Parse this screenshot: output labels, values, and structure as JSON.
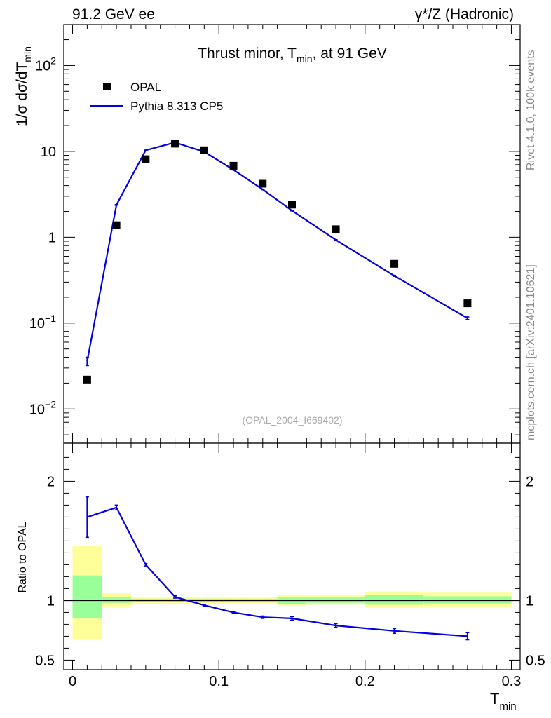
{
  "header": {
    "left": "91.2 GeV ee",
    "right_main": "γ*/Z (Hadronic)"
  },
  "side": {
    "rivet": "Rivet 4.1.0,  100k events",
    "mcplots": "mcplots.cern.ch [arXiv:2401.10621]"
  },
  "chart_data": [
    {
      "type": "scatter",
      "panel": "main",
      "title": "Thrust minor, Tmin, at 91 GeV",
      "title_parts": {
        "pre": "Thrust minor, T",
        "sub": "min",
        "post": ", at 91 GeV"
      },
      "ylabel": "1/σ  dσ/dTmin",
      "ylabel_parts": {
        "pre": "1/σ  dσ/dT",
        "sub": "min"
      },
      "yscale": "log",
      "ylim": [
        0.004,
        300
      ],
      "xlim": [
        -0.006,
        0.306
      ],
      "y_ticks": [
        {
          "value": 0.01,
          "base": "10",
          "exp": "−2"
        },
        {
          "value": 0.1,
          "base": "10",
          "exp": "−1"
        },
        {
          "value": 1,
          "label": "1"
        },
        {
          "value": 10,
          "label": "10"
        },
        {
          "value": 100,
          "base": "10",
          "exp": "2"
        }
      ],
      "watermark": "(OPAL_2004_I669402)",
      "legend": {
        "position": "top-left",
        "entries": [
          {
            "name": "OPAL",
            "marker": "square",
            "color": "#000000"
          },
          {
            "name": "Pythia 8.313 CP5",
            "marker": "line",
            "color": "#0000e0"
          }
        ]
      },
      "series": [
        {
          "name": "OPAL",
          "x": [
            0.01,
            0.03,
            0.05,
            0.07,
            0.09,
            0.11,
            0.13,
            0.15,
            0.18,
            0.22,
            0.27
          ],
          "y": [
            0.022,
            1.38,
            8.1,
            12.3,
            10.3,
            6.8,
            4.2,
            2.4,
            1.24,
            0.49,
            0.17
          ]
        },
        {
          "name": "Pythia 8.313 CP5",
          "x": [
            0.01,
            0.03,
            0.05,
            0.07,
            0.09,
            0.11,
            0.13,
            0.15,
            0.18,
            0.22,
            0.27
          ],
          "y": [
            0.036,
            2.38,
            10.3,
            12.7,
            9.9,
            6.1,
            3.6,
            2.04,
            0.93,
            0.355,
            0.114
          ],
          "err": [
            0.004,
            0.02,
            0.05,
            0.05,
            0.04,
            0.03,
            0.02,
            0.015,
            0.008,
            0.005,
            0.004
          ]
        }
      ]
    },
    {
      "type": "line",
      "panel": "ratio",
      "ylabel": "Ratio to OPAL",
      "xlabel": "Tmin",
      "xlabel_parts": {
        "pre": "T",
        "sub": "min"
      },
      "ylim": [
        0.42,
        2.32
      ],
      "xlim": [
        -0.006,
        0.306
      ],
      "x_ticks": [
        0,
        0.1,
        0.2,
        0.3
      ],
      "x_tick_labels": [
        "0",
        "0.1",
        "0.2",
        "0.3"
      ],
      "y_ticks": [
        0.5,
        1,
        2
      ],
      "y_tick_labels": [
        "0.5",
        "1",
        "2"
      ],
      "reference_line": 1,
      "bands": [
        {
          "x0": 0.0,
          "x1": 0.02,
          "stat": [
            0.85,
            1.21
          ],
          "total": [
            0.67,
            1.46
          ]
        },
        {
          "x0": 0.02,
          "x1": 0.04,
          "stat": [
            0.98,
            1.03
          ],
          "total": [
            0.95,
            1.06
          ]
        },
        {
          "x0": 0.04,
          "x1": 0.06,
          "stat": [
            0.985,
            1.015
          ],
          "total": [
            0.97,
            1.03
          ]
        },
        {
          "x0": 0.06,
          "x1": 0.08,
          "stat": [
            0.985,
            1.015
          ],
          "total": [
            0.97,
            1.03
          ]
        },
        {
          "x0": 0.08,
          "x1": 0.1,
          "stat": [
            0.985,
            1.015
          ],
          "total": [
            0.97,
            1.03
          ]
        },
        {
          "x0": 0.1,
          "x1": 0.12,
          "stat": [
            0.985,
            1.015
          ],
          "total": [
            0.975,
            1.03
          ]
        },
        {
          "x0": 0.12,
          "x1": 0.14,
          "stat": [
            0.985,
            1.015
          ],
          "total": [
            0.975,
            1.03
          ]
        },
        {
          "x0": 0.14,
          "x1": 0.16,
          "stat": [
            0.97,
            1.03
          ],
          "total": [
            0.955,
            1.05
          ]
        },
        {
          "x0": 0.16,
          "x1": 0.2,
          "stat": [
            0.98,
            1.03
          ],
          "total": [
            0.965,
            1.045
          ]
        },
        {
          "x0": 0.2,
          "x1": 0.24,
          "stat": [
            0.965,
            1.045
          ],
          "total": [
            0.94,
            1.075
          ]
        },
        {
          "x0": 0.24,
          "x1": 0.3,
          "stat": [
            0.975,
            1.035
          ],
          "total": [
            0.95,
            1.065
          ]
        }
      ],
      "series": [
        {
          "name": "Pythia 8.313 CP5 / OPAL",
          "x": [
            0.01,
            0.03,
            0.05,
            0.07,
            0.09,
            0.11,
            0.13,
            0.15,
            0.18,
            0.22,
            0.27
          ],
          "y": [
            1.7,
            1.78,
            1.3,
            1.03,
            0.96,
            0.9,
            0.86,
            0.85,
            0.79,
            0.745,
            0.7
          ],
          "err_lo": [
            0.17,
            0.02,
            0.01,
            0.01,
            0.006,
            0.008,
            0.01,
            0.015,
            0.015,
            0.02,
            0.03
          ],
          "err_hi": [
            0.17,
            0.02,
            0.01,
            0.01,
            0.006,
            0.008,
            0.01,
            0.015,
            0.015,
            0.02,
            0.03
          ]
        }
      ]
    }
  ]
}
